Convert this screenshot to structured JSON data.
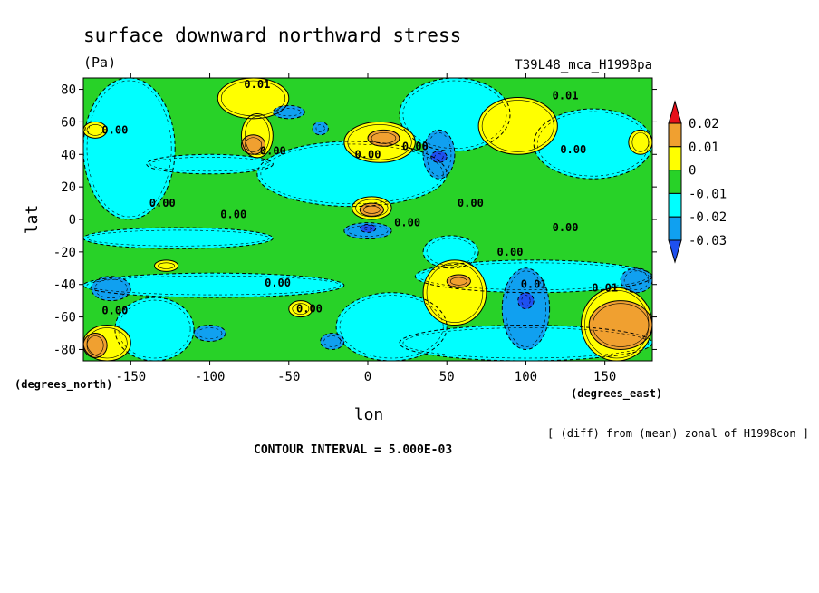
{
  "chart_data": {
    "type": "heatmap",
    "title": "surface downward northward stress",
    "units": "(Pa)",
    "experiment": "T39L48_mca_H1998pa",
    "xlabel": "lon",
    "ylabel": "lat",
    "x_unit_label": "(degrees_east)",
    "y_unit_label": "(degrees_north)",
    "xlim": [
      -180,
      180
    ],
    "ylim": [
      -87,
      87
    ],
    "x_ticks": [
      "-150",
      "-100",
      "-50",
      "0",
      "50",
      "100",
      "150"
    ],
    "y_ticks": [
      "80",
      "60",
      "40",
      "20",
      "0",
      "-20",
      "-40",
      "-60",
      "-80"
    ],
    "colorbar_levels": [
      "0.02",
      "0.01",
      "0",
      "-0.01",
      "-0.02",
      "-0.03"
    ],
    "colorbar_colors": [
      "#e8101a",
      "#f0a030",
      "#ffff00",
      "#28d228",
      "#00ffff",
      "#10a0f0",
      "#1e50f0"
    ],
    "note": "[ (diff) from (mean) zonal of H1998con ]",
    "contour_interval": "CONTOUR INTERVAL = 5.000E-03",
    "contour_labels": [
      {
        "text": "0.01",
        "lon": -70,
        "lat": 83
      },
      {
        "text": "0.01",
        "lon": 125,
        "lat": 76
      },
      {
        "text": "0.00",
        "lon": -160,
        "lat": 55
      },
      {
        "text": "0.00",
        "lon": -60,
        "lat": 42
      },
      {
        "text": "0.00",
        "lon": 0,
        "lat": 40
      },
      {
        "text": "0.00",
        "lon": 30,
        "lat": 45
      },
      {
        "text": "0.00",
        "lon": 130,
        "lat": 43
      },
      {
        "text": "0.00",
        "lon": -130,
        "lat": 10
      },
      {
        "text": "0.00",
        "lon": -85,
        "lat": 3
      },
      {
        "text": "0.00",
        "lon": 25,
        "lat": -2
      },
      {
        "text": "0.00",
        "lon": 65,
        "lat": 10
      },
      {
        "text": "0.00",
        "lon": 125,
        "lat": -5
      },
      {
        "text": "0.00",
        "lon": 90,
        "lat": -20
      },
      {
        "text": "0.01",
        "lon": 105,
        "lat": -40
      },
      {
        "text": "0.01",
        "lon": 150,
        "lat": -42
      },
      {
        "text": "0.00",
        "lon": -57,
        "lat": -39
      },
      {
        "text": "0.00",
        "lon": -160,
        "lat": -56
      },
      {
        "text": "0.00",
        "lon": -37,
        "lat": -55
      }
    ],
    "regions": [
      {
        "level": 3,
        "lon": [
          -180,
          180
        ],
        "lat": [
          -87,
          87
        ]
      },
      {
        "level": 2,
        "lon": [
          -180,
          -122
        ],
        "lat": [
          0,
          87
        ]
      },
      {
        "level": 2,
        "lon": [
          -140,
          -60
        ],
        "lat": [
          28,
          40
        ]
      },
      {
        "level": 2,
        "lon": [
          -70,
          50
        ],
        "lat": [
          8,
          48
        ]
      },
      {
        "level": 2,
        "lon": [
          20,
          90
        ],
        "lat": [
          42,
          87
        ]
      },
      {
        "level": 2,
        "lon": [
          105,
          180
        ],
        "lat": [
          25,
          68
        ]
      },
      {
        "level": 2,
        "lon": [
          -180,
          -60
        ],
        "lat": [
          -18,
          -5
        ]
      },
      {
        "level": 2,
        "lon": [
          -180,
          -15
        ],
        "lat": [
          -48,
          -33
        ]
      },
      {
        "level": 2,
        "lon": [
          -160,
          -110
        ],
        "lat": [
          -87,
          -48
        ]
      },
      {
        "level": 2,
        "lon": [
          -20,
          50
        ],
        "lat": [
          -87,
          -45
        ]
      },
      {
        "level": 2,
        "lon": [
          20,
          180
        ],
        "lat": [
          -87,
          -65
        ]
      },
      {
        "level": 2,
        "lon": [
          30,
          180
        ],
        "lat": [
          -45,
          -25
        ]
      },
      {
        "level": 2,
        "lon": [
          35,
          70
        ],
        "lat": [
          -30,
          -10
        ]
      },
      {
        "level": 4,
        "lon": [
          -180,
          -165
        ],
        "lat": [
          50,
          60
        ]
      },
      {
        "level": 4,
        "lon": [
          -95,
          -50
        ],
        "lat": [
          62,
          87
        ]
      },
      {
        "level": 4,
        "lon": [
          -80,
          -60
        ],
        "lat": [
          38,
          65
        ]
      },
      {
        "level": 4,
        "lon": [
          -15,
          30
        ],
        "lat": [
          35,
          60
        ]
      },
      {
        "level": 4,
        "lon": [
          -10,
          15
        ],
        "lat": [
          0,
          14
        ]
      },
      {
        "level": 4,
        "lon": [
          70,
          120
        ],
        "lat": [
          40,
          75
        ]
      },
      {
        "level": 4,
        "lon": [
          165,
          180
        ],
        "lat": [
          40,
          55
        ]
      },
      {
        "level": 4,
        "lon": [
          35,
          75
        ],
        "lat": [
          -65,
          -25
        ]
      },
      {
        "level": 4,
        "lon": [
          -180,
          -150
        ],
        "lat": [
          -87,
          -65
        ]
      },
      {
        "level": 4,
        "lon": [
          135,
          180
        ],
        "lat": [
          -87,
          -42
        ]
      },
      {
        "level": 4,
        "lon": [
          -50,
          -35
        ],
        "lat": [
          -60,
          -50
        ]
      },
      {
        "level": 4,
        "lon": [
          -135,
          -120
        ],
        "lat": [
          -32,
          -25
        ]
      },
      {
        "level": 5,
        "lon": [
          -80,
          -65
        ],
        "lat": [
          40,
          52
        ]
      },
      {
        "level": 5,
        "lon": [
          0,
          20
        ],
        "lat": [
          45,
          55
        ]
      },
      {
        "level": 5,
        "lon": [
          -5,
          10
        ],
        "lat": [
          2,
          10
        ]
      },
      {
        "level": 5,
        "lon": [
          50,
          65
        ],
        "lat": [
          -42,
          -34
        ]
      },
      {
        "level": 5,
        "lon": [
          -180,
          -165
        ],
        "lat": [
          -85,
          -70
        ]
      },
      {
        "level": 5,
        "lon": [
          140,
          180
        ],
        "lat": [
          -80,
          -50
        ]
      },
      {
        "level": 1,
        "lon": [
          -60,
          -40
        ],
        "lat": [
          62,
          70
        ]
      },
      {
        "level": 1,
        "lon": [
          -35,
          -25
        ],
        "lat": [
          52,
          60
        ]
      },
      {
        "level": 1,
        "lon": [
          35,
          55
        ],
        "lat": [
          25,
          55
        ]
      },
      {
        "level": 1,
        "lon": [
          -15,
          15
        ],
        "lat": [
          -12,
          -2
        ]
      },
      {
        "level": 1,
        "lon": [
          85,
          115
        ],
        "lat": [
          -80,
          -30
        ]
      },
      {
        "level": 1,
        "lon": [
          -175,
          -150
        ],
        "lat": [
          -50,
          -35
        ]
      },
      {
        "level": 1,
        "lon": [
          -110,
          -90
        ],
        "lat": [
          -75,
          -65
        ]
      },
      {
        "level": 1,
        "lon": [
          160,
          180
        ],
        "lat": [
          -45,
          -30
        ]
      },
      {
        "level": 1,
        "lon": [
          -30,
          -15
        ],
        "lat": [
          -80,
          -70
        ]
      },
      {
        "level": 0,
        "lon": [
          40,
          50
        ],
        "lat": [
          35,
          42
        ]
      },
      {
        "level": 0,
        "lon": [
          -5,
          5
        ],
        "lat": [
          -8,
          -3
        ]
      },
      {
        "level": 0,
        "lon": [
          95,
          105
        ],
        "lat": [
          -55,
          -45
        ]
      }
    ]
  }
}
